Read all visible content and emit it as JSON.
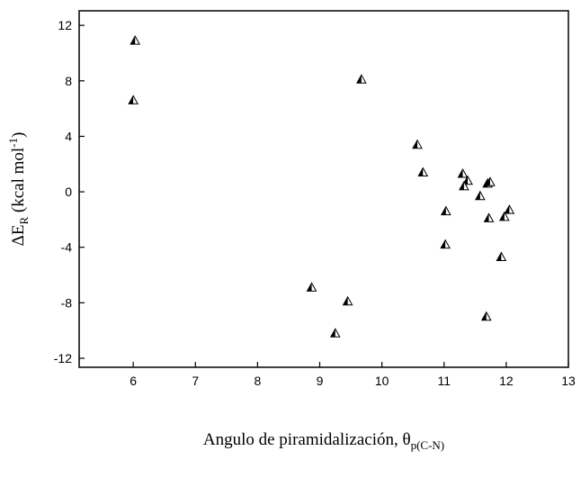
{
  "chart_data": {
    "type": "scatter",
    "xlabel_parts": [
      "Angulo de piramidalización, θ",
      "p(C-N)"
    ],
    "ylabel_parts": [
      "ΔE",
      "R",
      " (kcal mol",
      "-1",
      ")"
    ],
    "series": [
      {
        "color": "#000000",
        "x": [
          6.03,
          6.0,
          9.67,
          10.57,
          10.66,
          11.3,
          11.38,
          11.32,
          11.58,
          11.7,
          11.74,
          11.03,
          11.72,
          11.97,
          12.05,
          11.02,
          11.92,
          11.68,
          8.87,
          9.45,
          9.25
        ],
        "values": [
          10.9,
          6.6,
          8.1,
          3.4,
          1.4,
          1.3,
          0.8,
          0.4,
          -0.3,
          0.6,
          0.7,
          -1.4,
          -1.9,
          -1.8,
          -1.3,
          -3.8,
          -4.7,
          -9.0,
          -6.9,
          -7.9,
          -10.2
        ]
      }
    ],
    "xlim": [
      5.13,
      13
    ],
    "xticks": [
      6,
      7,
      8,
      9,
      10,
      11,
      12,
      13
    ],
    "ylim": [
      -12.65,
      13.05
    ],
    "yticks": [
      -12,
      -8,
      -4,
      0,
      4,
      8,
      12
    ]
  }
}
